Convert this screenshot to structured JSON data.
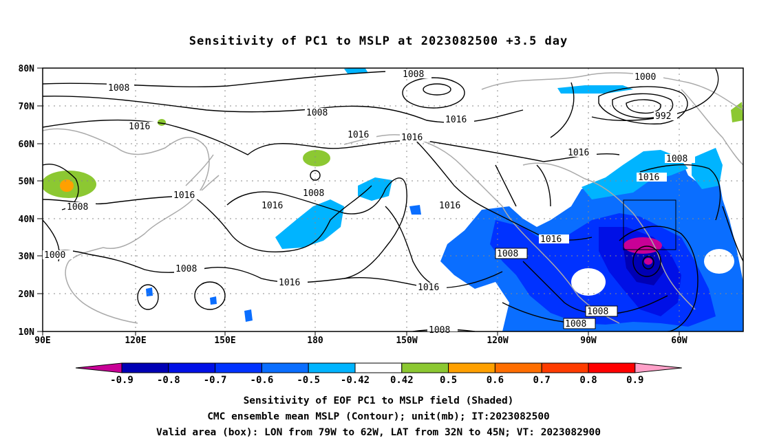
{
  "title": "Sensitivity of PC1 to MSLP at 2023082500 +3.5 day",
  "lat_labels": [
    "80N",
    "70N",
    "60N",
    "50N",
    "40N",
    "30N",
    "20N",
    "10N"
  ],
  "lon_labels": [
    "90E",
    "120E",
    "150E",
    "180",
    "150W",
    "120W",
    "90W",
    "60W"
  ],
  "contour_labels": {
    "c1008a": "1008",
    "c1008b": "1008",
    "c1008c": "1008",
    "c1016a": "1016",
    "c1016b": "1016",
    "c1016c": "1016",
    "c1016d": "1016",
    "c1008d": "1008",
    "c1008e": "1008",
    "c1016e": "1016",
    "c1000a": "1000",
    "c1008f": "1008",
    "c1016f": "1016",
    "c1016g": "1016",
    "c1016h": "1016",
    "c1016i": "1016",
    "c1008g": "1008",
    "c1016j": "1016",
    "c1008h": "1008",
    "c1008i": "1008",
    "c1008j": "1008",
    "c1016k": "1016",
    "c1000b": "1000",
    "c992": "992",
    "c1008k": "1008",
    "c1016l": "1016"
  },
  "colorbar": {
    "labels": [
      "-0.9",
      "-0.8",
      "-0.7",
      "-0.6",
      "-0.5",
      "-0.42",
      "0.42",
      "0.5",
      "0.6",
      "0.7",
      "0.8",
      "0.9"
    ],
    "colors": [
      "#0000b4",
      "#0010e6",
      "#0032ff",
      "#0a6eff",
      "#00b4ff",
      "#ffffff",
      "#8cc832",
      "#ffa000",
      "#ff6e00",
      "#ff3c00",
      "#ff0000"
    ],
    "low_arrow_color": "#c80096",
    "high_arrow_color": "#ffa0c8"
  },
  "captions": {
    "line1": "Sensitivity of EOF PC1 to MSLP field (Shaded)",
    "line2": "CMC ensemble mean MSLP (Contour); unit(mb); IT:2023082500",
    "line3": "Valid area (box): LON from 79W to 62W, LAT from 32N to 45N; VT: 2023082900"
  }
}
